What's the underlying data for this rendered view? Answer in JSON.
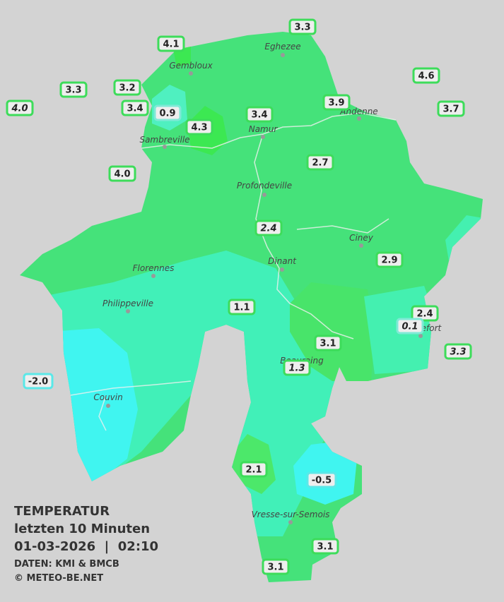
{
  "title": {
    "line1": "TEMPERATUR",
    "line2": "letzten 10 Minuten",
    "line3": "01-03-2026  |  02:10",
    "source": "DATEN: KMI & BMCB",
    "copyright": "© METEO-BE.NET"
  },
  "cities": [
    "Eghezee",
    "Gembloux",
    "Andenne",
    "Namur",
    "Sambreville",
    "Profondeville",
    "Ciney",
    "Dinant",
    "Florennes",
    "Philippeville",
    "Rochefort",
    "Beauraing",
    "Couvin",
    "Vresse-sur-Semois"
  ],
  "stations": [
    {
      "label": "4.1",
      "italic": false,
      "color": "#3ddc5a"
    },
    {
      "label": "3.3",
      "italic": false,
      "color": "#3ddc5a"
    },
    {
      "label": "4.6",
      "italic": false,
      "color": "#3ddc5a"
    },
    {
      "label": "3.3",
      "italic": false,
      "color": "#3ddc5a"
    },
    {
      "label": "3.2",
      "italic": false,
      "color": "#3ddc5a"
    },
    {
      "label": "3.4",
      "italic": false,
      "color": "#3ddc5a"
    },
    {
      "label": "0.9",
      "italic": false,
      "color": "#7fe9d6"
    },
    {
      "label": "4.3",
      "italic": false,
      "color": "#3ddc5a"
    },
    {
      "label": "3.4",
      "italic": false,
      "color": "#3ddc5a"
    },
    {
      "label": "3.9",
      "italic": false,
      "color": "#3ddc5a"
    },
    {
      "label": "3.7",
      "italic": false,
      "color": "#3ddc5a"
    },
    {
      "label": "4.0",
      "italic": true,
      "color": "#3ddc5a"
    },
    {
      "label": "4.0",
      "italic": false,
      "color": "#3ddc5a"
    },
    {
      "label": "2.7",
      "italic": false,
      "color": "#3ddc5a"
    },
    {
      "label": "2.4",
      "italic": true,
      "color": "#3ddc5a"
    },
    {
      "label": "2.9",
      "italic": false,
      "color": "#3ddc5a"
    },
    {
      "label": "1.1",
      "italic": false,
      "color": "#3ddc5a"
    },
    {
      "label": "2.4",
      "italic": false,
      "color": "#3ddc5a"
    },
    {
      "label": "0.1",
      "italic": true,
      "color": "#7fe9d6"
    },
    {
      "label": "3.3",
      "italic": true,
      "color": "#3ddc5a"
    },
    {
      "label": "3.1",
      "italic": false,
      "color": "#3ddc5a"
    },
    {
      "label": "1.3",
      "italic": true,
      "color": "#3ddc5a"
    },
    {
      "label": "-2.0",
      "italic": false,
      "color": "#5ae8e8"
    },
    {
      "label": "2.1",
      "italic": false,
      "color": "#3ddc5a"
    },
    {
      "label": "-0.5",
      "italic": false,
      "color": "#5ae8e8"
    },
    {
      "label": "3.1",
      "italic": false,
      "color": "#3ddc5a"
    },
    {
      "label": "3.1",
      "italic": false,
      "color": "#3ddc5a"
    }
  ]
}
